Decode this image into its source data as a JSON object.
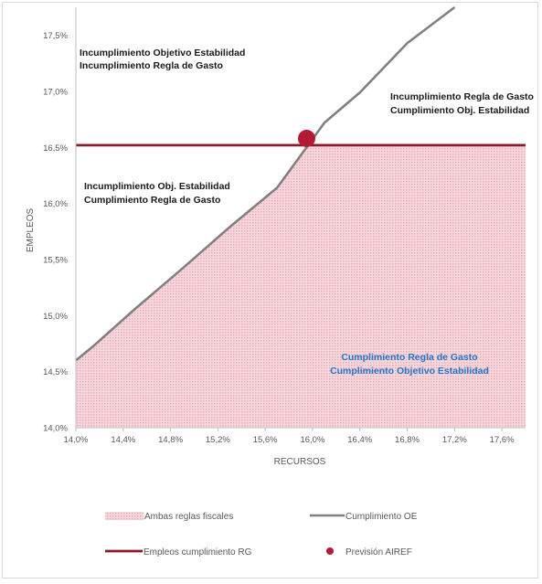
{
  "chart_data": {
    "type": "line",
    "xlabel": "RECURSOS",
    "ylabel": "EMPLEOS",
    "xlim": [
      14.0,
      17.8
    ],
    "ylim": [
      14.0,
      17.75
    ],
    "x_ticks": [
      "14,0%",
      "14,4%",
      "14,8%",
      "15,2%",
      "15,6%",
      "16,0%",
      "16,4%",
      "16,8%",
      "17,2%",
      "17,6%"
    ],
    "y_ticks": [
      "14,0%",
      "14,5%",
      "15,0%",
      "15,5%",
      "16,0%",
      "16,5%",
      "17,0%",
      "17,5%"
    ],
    "grid": false,
    "legend_position": "bottom",
    "series": [
      {
        "name": "Cumplimiento OE",
        "kind": "line",
        "color": "#808080",
        "points": [
          [
            14.0,
            14.6
          ],
          [
            14.15,
            14.73
          ],
          [
            14.5,
            15.06
          ],
          [
            14.9,
            15.42
          ],
          [
            15.3,
            15.79
          ],
          [
            15.7,
            16.14
          ],
          [
            15.88,
            16.4
          ],
          [
            16.1,
            16.72
          ],
          [
            16.4,
            16.99
          ],
          [
            16.8,
            17.43
          ],
          [
            17.2,
            17.75
          ]
        ]
      },
      {
        "name": "Empleos cumplimiento RG",
        "kind": "hline",
        "color": "#8b1a2b",
        "y": 16.52,
        "x_range": [
          14.0,
          17.8
        ]
      },
      {
        "name": "Ambas reglas fiscales",
        "kind": "area",
        "color": "#f4c7cf",
        "top_points": [
          [
            14.0,
            14.6
          ],
          [
            14.15,
            14.73
          ],
          [
            14.5,
            15.06
          ],
          [
            14.9,
            15.42
          ],
          [
            15.3,
            15.79
          ],
          [
            15.7,
            16.14
          ],
          [
            15.88,
            16.4
          ],
          [
            15.95,
            16.52
          ],
          [
            17.8,
            16.52
          ]
        ]
      },
      {
        "name": "Previsión AIREF",
        "kind": "point",
        "color": "#b31b34",
        "x": 15.95,
        "y": 16.58
      }
    ],
    "annotations": [
      {
        "lines": [
          "Incumplimiento  Objetivo Estabilidad",
          "Incumplimiento  Regla de Gasto"
        ],
        "style": "dark"
      },
      {
        "lines": [
          "Incumplimiento  Regla de Gasto",
          "Cumplimiento Obj. Estabilidad"
        ],
        "style": "dark"
      },
      {
        "lines": [
          "Incumplimiento  Obj. Estabilidad",
          "Cumplimiento Regla de Gasto"
        ],
        "style": "dark"
      },
      {
        "lines": [
          "Cumplimiento Regla de Gasto",
          "Cumplimiento Objetivo Estabilidad"
        ],
        "style": "blue"
      }
    ]
  }
}
